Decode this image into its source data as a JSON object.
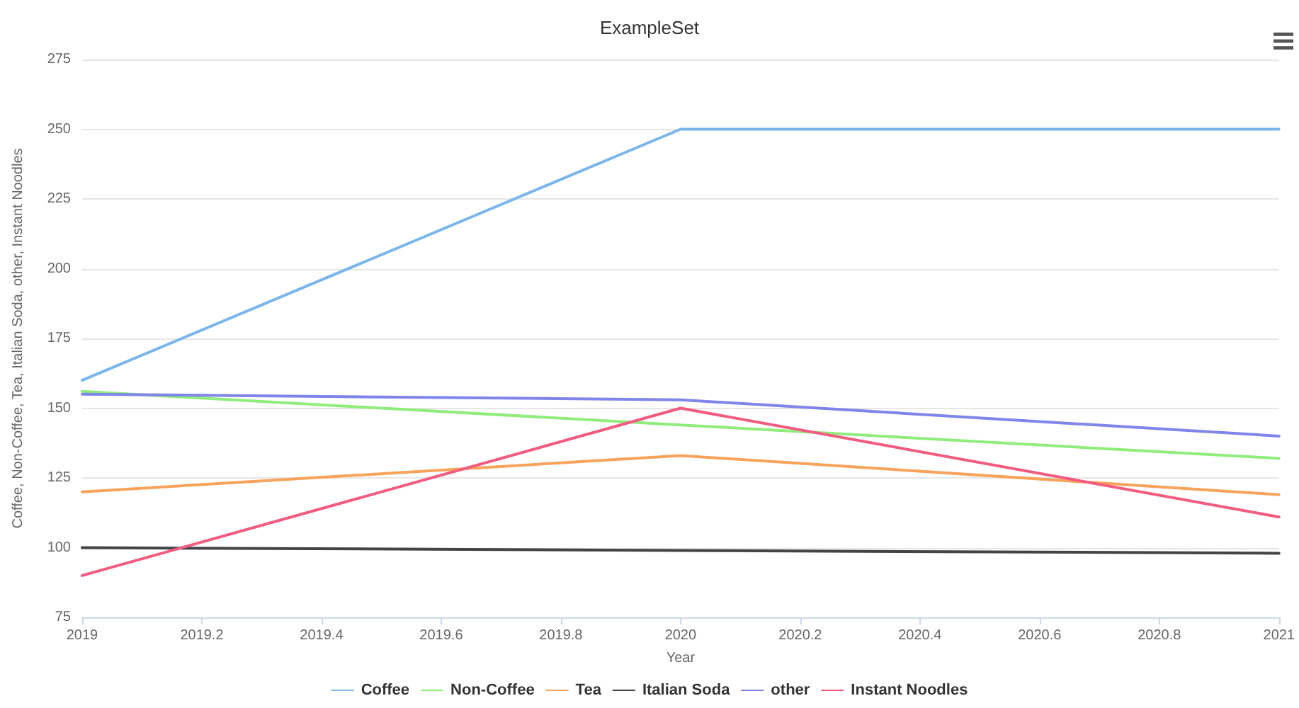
{
  "chart_data": {
    "type": "line",
    "title": "ExampleSet",
    "xlabel": "Year",
    "ylabel": "Coffee, Non-Coffee, Tea, Italian Soda, other, Instant Noodles",
    "x": [
      2019,
      2020,
      2021
    ],
    "series": [
      {
        "name": "Coffee",
        "color": "#7cb5ec",
        "values": [
          160,
          250,
          250
        ]
      },
      {
        "name": "Non-Coffee",
        "color": "#90ed7d",
        "values": [
          156,
          144,
          132
        ]
      },
      {
        "name": "Tea",
        "color": "#f7a35c",
        "values": [
          120,
          133,
          119
        ]
      },
      {
        "name": "Italian Soda",
        "color": "#434348",
        "values": [
          100,
          99,
          98
        ]
      },
      {
        "name": "other",
        "color": "#8085e9",
        "values": [
          155,
          153,
          140
        ]
      },
      {
        "name": "Instant Noodles",
        "color": "#f15c80",
        "values": [
          90,
          150,
          111
        ]
      }
    ],
    "xlim": [
      2019,
      2021
    ],
    "xticks": [
      2019,
      2019.2,
      2019.4,
      2019.6,
      2019.8,
      2020,
      2020.2,
      2020.4,
      2020.6,
      2020.8,
      2021
    ],
    "ylim": [
      75,
      275
    ],
    "yticks": [
      75,
      100,
      125,
      150,
      175,
      200,
      225,
      250,
      275
    ],
    "grid": "y",
    "legend": "bottom",
    "marker": "none",
    "line_style": "solid"
  }
}
